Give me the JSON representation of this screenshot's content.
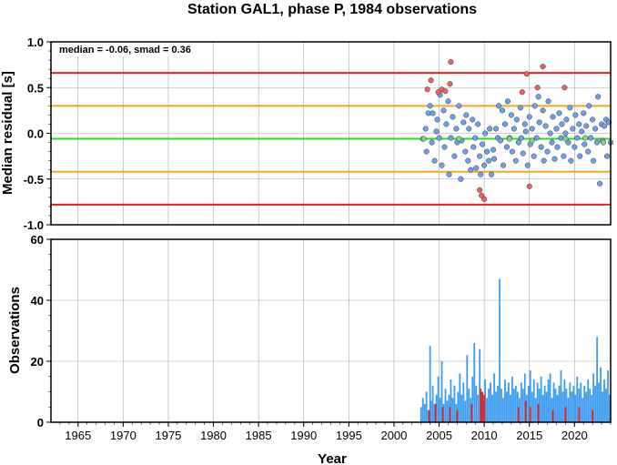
{
  "chart_data": [
    {
      "type": "scatter",
      "title": "Station GAL1, phase P, 1984 observations",
      "xlabel": "",
      "ylabel": "Median residual [s]",
      "xlim": [
        1962,
        2024
      ],
      "ylim": [
        -1.0,
        1.0
      ],
      "grid": true,
      "annotation": "median = -0.06, smad = 0.36",
      "y_ticks": [
        "1.0",
        "0.5",
        "0.0",
        "-0.5",
        "-1.0"
      ],
      "reference_lines": [
        {
          "y": 0.66,
          "color": "#e8201b"
        },
        {
          "y": 0.3,
          "color": "#f5a623"
        },
        {
          "y": -0.06,
          "color": "#22e31c"
        },
        {
          "y": -0.42,
          "color": "#f5a623"
        },
        {
          "y": -0.78,
          "color": "#e8201b"
        }
      ],
      "series": [
        {
          "color": "#6ea0f0",
          "points": [
            [
              2003.2,
              -0.06
            ],
            [
              2003.5,
              0.05
            ],
            [
              2003.6,
              -0.2
            ],
            [
              2003.8,
              0.22
            ],
            [
              2004.0,
              0.3
            ],
            [
              2004.2,
              -0.1
            ],
            [
              2004.3,
              0.22
            ],
            [
              2004.5,
              -0.3
            ],
            [
              2004.7,
              0.02
            ],
            [
              2004.8,
              0.15
            ],
            [
              2005.0,
              -0.05
            ],
            [
              2005.1,
              0.42
            ],
            [
              2005.3,
              -0.35
            ],
            [
              2005.5,
              0.25
            ],
            [
              2005.6,
              -0.15
            ],
            [
              2005.8,
              0.1
            ],
            [
              2006.0,
              0.35
            ],
            [
              2006.1,
              -0.45
            ],
            [
              2006.3,
              -0.05
            ],
            [
              2006.5,
              0.18
            ],
            [
              2006.7,
              -0.25
            ],
            [
              2006.9,
              0.05
            ],
            [
              2007.0,
              -0.1
            ],
            [
              2007.2,
              0.3
            ],
            [
              2007.4,
              -0.5
            ],
            [
              2007.5,
              -0.08
            ],
            [
              2007.7,
              0.12
            ],
            [
              2007.9,
              -0.2
            ],
            [
              2008.0,
              0.2
            ],
            [
              2008.2,
              -0.3
            ],
            [
              2008.3,
              0.05
            ],
            [
              2008.5,
              -0.4
            ],
            [
              2008.7,
              0.15
            ],
            [
              2008.8,
              -0.15
            ],
            [
              2009.0,
              -0.05
            ],
            [
              2009.1,
              -0.38
            ],
            [
              2009.3,
              0.1
            ],
            [
              2009.5,
              -0.25
            ],
            [
              2009.6,
              -0.45
            ],
            [
              2009.8,
              -0.12
            ],
            [
              2010.0,
              -0.35
            ],
            [
              2010.1,
              0.0
            ],
            [
              2010.3,
              -0.2
            ],
            [
              2010.5,
              -0.3
            ],
            [
              2010.6,
              0.05
            ],
            [
              2010.8,
              -0.45
            ],
            [
              2011.0,
              -0.18
            ],
            [
              2011.1,
              -0.28
            ],
            [
              2011.3,
              0.05
            ],
            [
              2011.5,
              -0.05
            ],
            [
              2011.6,
              0.3
            ],
            [
              2011.8,
              -0.08
            ],
            [
              2012.0,
              0.25
            ],
            [
              2012.1,
              -0.35
            ],
            [
              2012.3,
              0.1
            ],
            [
              2012.5,
              -0.15
            ],
            [
              2012.6,
              0.35
            ],
            [
              2012.8,
              -0.05
            ],
            [
              2013.0,
              0.2
            ],
            [
              2013.1,
              -0.2
            ],
            [
              2013.3,
              0.05
            ],
            [
              2013.5,
              -0.3
            ],
            [
              2013.6,
              0.15
            ],
            [
              2013.8,
              -0.1
            ],
            [
              2014.0,
              0.28
            ],
            [
              2014.1,
              -0.05
            ],
            [
              2014.3,
              -0.22
            ],
            [
              2014.5,
              0.1
            ],
            [
              2014.6,
              0.02
            ],
            [
              2014.8,
              -0.35
            ],
            [
              2015.0,
              0.18
            ],
            [
              2015.1,
              -0.12
            ],
            [
              2015.3,
              0.05
            ],
            [
              2015.5,
              -0.25
            ],
            [
              2015.6,
              0.3
            ],
            [
              2015.8,
              -0.05
            ],
            [
              2016.0,
              0.4
            ],
            [
              2016.1,
              0.12
            ],
            [
              2016.3,
              -0.15
            ],
            [
              2016.5,
              0.25
            ],
            [
              2016.6,
              -0.3
            ],
            [
              2016.8,
              0.08
            ],
            [
              2017.0,
              -0.2
            ],
            [
              2017.1,
              0.35
            ],
            [
              2017.3,
              0.0
            ],
            [
              2017.5,
              -0.1
            ],
            [
              2017.6,
              0.18
            ],
            [
              2017.8,
              -0.28
            ],
            [
              2018.0,
              0.05
            ],
            [
              2018.1,
              -0.15
            ],
            [
              2018.3,
              0.22
            ],
            [
              2018.5,
              -0.05
            ],
            [
              2018.6,
              0.1
            ],
            [
              2018.8,
              -0.25
            ],
            [
              2019.0,
              0.0
            ],
            [
              2019.1,
              0.15
            ],
            [
              2019.3,
              -0.1
            ],
            [
              2019.5,
              0.28
            ],
            [
              2019.6,
              -0.3
            ],
            [
              2019.8,
              0.05
            ],
            [
              2020.0,
              -0.15
            ],
            [
              2020.1,
              0.2
            ],
            [
              2020.3,
              -0.05
            ],
            [
              2020.5,
              0.1
            ],
            [
              2020.6,
              -0.25
            ],
            [
              2020.8,
              0.02
            ],
            [
              2021.0,
              0.22
            ],
            [
              2021.1,
              -0.12
            ],
            [
              2021.3,
              0.08
            ],
            [
              2021.5,
              -0.2
            ],
            [
              2021.6,
              0.3
            ],
            [
              2021.8,
              -0.05
            ],
            [
              2022.0,
              0.15
            ],
            [
              2022.1,
              -0.3
            ],
            [
              2022.3,
              0.05
            ],
            [
              2022.5,
              -0.1
            ],
            [
              2022.6,
              0.4
            ],
            [
              2022.8,
              -0.55
            ],
            [
              2023.0,
              0.1
            ],
            [
              2023.1,
              -0.08
            ],
            [
              2023.3,
              0.08
            ],
            [
              2023.5,
              0.15
            ],
            [
              2023.6,
              -0.25
            ],
            [
              2023.8,
              0.12
            ],
            [
              2024.0,
              -0.1
            ]
          ]
        },
        {
          "color": "#f06060",
          "points": [
            [
              2003.7,
              0.48
            ],
            [
              2004.1,
              0.58
            ],
            [
              2004.9,
              0.45
            ],
            [
              2005.3,
              0.48
            ],
            [
              2005.7,
              0.46
            ],
            [
              2006.3,
              0.78
            ],
            [
              2006.2,
              0.54
            ],
            [
              2009.5,
              -0.62
            ],
            [
              2009.7,
              -0.68
            ],
            [
              2010.0,
              -0.72
            ],
            [
              2014.2,
              0.45
            ],
            [
              2014.7,
              0.65
            ],
            [
              2015.0,
              -0.58
            ],
            [
              2015.9,
              0.5
            ],
            [
              2016.5,
              0.73
            ],
            [
              2018.9,
              0.5
            ]
          ]
        },
        {
          "color": "#7fd87f",
          "points": [
            [
              2003.3,
              -0.06
            ],
            [
              2007.2,
              -0.06
            ],
            [
              2012.8,
              -0.06
            ],
            [
              2015.3,
              -0.08
            ],
            [
              2019.0,
              -0.06
            ],
            [
              2021.2,
              -0.05
            ],
            [
              2023.2,
              -0.1
            ]
          ]
        }
      ]
    },
    {
      "type": "bar",
      "xlabel": "Year",
      "ylabel": "Observations",
      "xlim": [
        1962,
        2024
      ],
      "ylim": [
        0,
        60
      ],
      "grid": true,
      "y_ticks": [
        "60",
        "40",
        "20",
        "0"
      ],
      "x_ticks": [
        "1965",
        "1970",
        "1975",
        "1980",
        "1985",
        "1990",
        "1995",
        "2000",
        "2005",
        "2010",
        "2015",
        "2020"
      ],
      "series": [
        {
          "color": "#3a9cf0",
          "x": [
            2003.0,
            2003.2,
            2003.4,
            2003.6,
            2003.8,
            2004.0,
            2004.1,
            2004.3,
            2004.5,
            2004.7,
            2004.9,
            2005.1,
            2005.3,
            2005.5,
            2005.7,
            2005.9,
            2006.1,
            2006.3,
            2006.5,
            2006.7,
            2006.9,
            2007.1,
            2007.3,
            2007.5,
            2007.7,
            2007.9,
            2008.1,
            2008.3,
            2008.5,
            2008.7,
            2008.9,
            2009.1,
            2009.3,
            2009.5,
            2009.7,
            2009.9,
            2010.1,
            2010.3,
            2010.5,
            2010.7,
            2010.9,
            2011.1,
            2011.3,
            2011.5,
            2011.7,
            2011.9,
            2012.1,
            2012.3,
            2012.5,
            2012.7,
            2012.9,
            2013.1,
            2013.3,
            2013.5,
            2013.7,
            2013.9,
            2014.1,
            2014.3,
            2014.5,
            2014.7,
            2014.9,
            2015.1,
            2015.3,
            2015.5,
            2015.7,
            2015.9,
            2016.1,
            2016.3,
            2016.5,
            2016.7,
            2016.9,
            2017.1,
            2017.3,
            2017.5,
            2017.7,
            2017.9,
            2018.1,
            2018.3,
            2018.5,
            2018.7,
            2018.9,
            2019.1,
            2019.3,
            2019.5,
            2019.7,
            2019.9,
            2020.1,
            2020.3,
            2020.5,
            2020.7,
            2020.9,
            2021.1,
            2021.3,
            2021.5,
            2021.7,
            2021.9,
            2022.1,
            2022.3,
            2022.5,
            2022.7,
            2022.9,
            2023.1,
            2023.3,
            2023.5,
            2023.7,
            2023.9
          ],
          "values": [
            5,
            8,
            6,
            10,
            4,
            25,
            7,
            12,
            6,
            9,
            15,
            8,
            20,
            6,
            11,
            7,
            9,
            14,
            8,
            12,
            6,
            10,
            16,
            9,
            13,
            7,
            22,
            11,
            8,
            15,
            26,
            12,
            9,
            24,
            10,
            7,
            14,
            8,
            11,
            13,
            9,
            16,
            10,
            12,
            47,
            11,
            8,
            14,
            10,
            13,
            9,
            15,
            11,
            12,
            10,
            8,
            13,
            11,
            16,
            9,
            12,
            17,
            10,
            14,
            8,
            13,
            11,
            15,
            9,
            12,
            10,
            14,
            16,
            8,
            13,
            11,
            9,
            12,
            17,
            10,
            14,
            11,
            8,
            13,
            10,
            12,
            9,
            15,
            11,
            13,
            8,
            12,
            10,
            14,
            11,
            9,
            16,
            12,
            28,
            13,
            18,
            10,
            14,
            11,
            17,
            9
          ]
        },
        {
          "color": "#e8201b",
          "x": [
            2003.9,
            2004.6,
            2005.4,
            2006.2,
            2007.0,
            2008.6,
            2009.6,
            2009.8,
            2010.0,
            2013.8,
            2014.6,
            2015.1,
            2016.0,
            2017.6,
            2019.0,
            2020.5,
            2022.0
          ],
          "values": [
            4,
            6,
            5,
            5,
            4,
            6,
            11,
            10,
            9,
            5,
            7,
            5,
            6,
            4,
            5,
            5,
            4
          ]
        }
      ]
    }
  ]
}
